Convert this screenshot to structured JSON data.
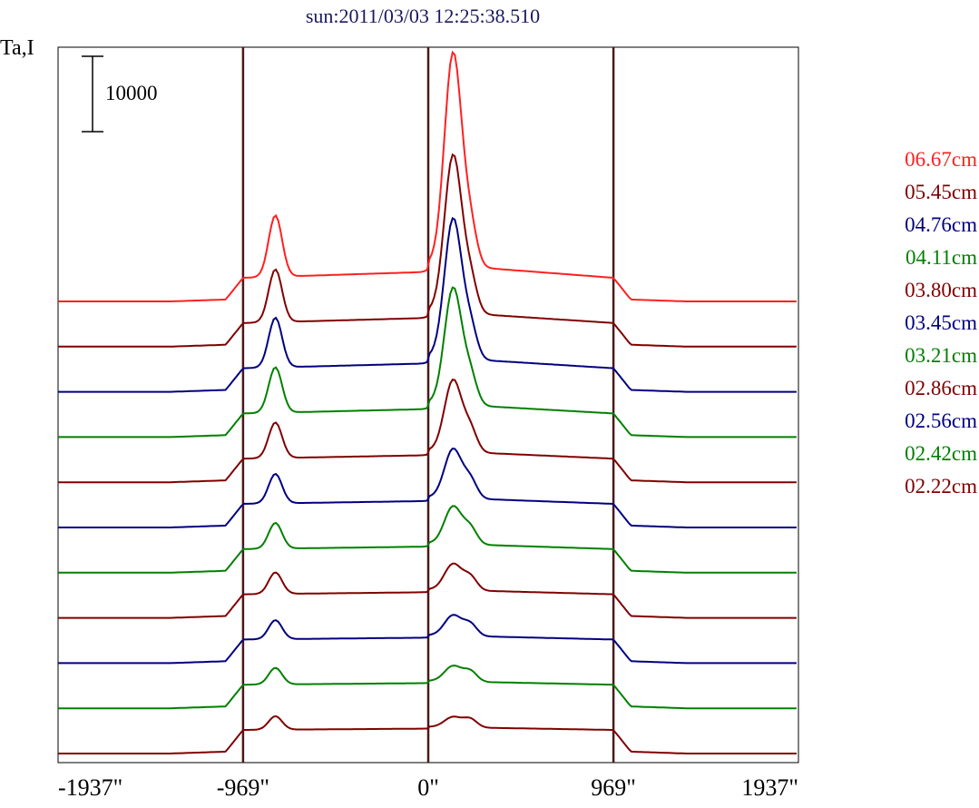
{
  "chart_data": {
    "type": "line",
    "title": "sun:2011/03/03 12:25:38.510",
    "ylabel": "Ta,I",
    "scale_bar_label": "10000",
    "scale_bar_value": 10000,
    "xlim": [
      -1937,
      1937
    ],
    "x_ticks": [
      {
        "value": -1937,
        "label": "-1937\""
      },
      {
        "value": -969,
        "label": "-969\""
      },
      {
        "value": 0,
        "label": "0\""
      },
      {
        "value": 969,
        "label": "969\""
      },
      {
        "value": 1937,
        "label": "1937\""
      }
    ],
    "vlines": [
      -969,
      0,
      969
    ],
    "legend_position": "right",
    "series": [
      {
        "name": "06.67cm",
        "color": "#ff2020",
        "amplitude": 1.0
      },
      {
        "name": "05.45cm",
        "color": "#800000",
        "amplitude": 0.86
      },
      {
        "name": "04.76cm",
        "color": "#000080",
        "amplitude": 0.81
      },
      {
        "name": "04.11cm",
        "color": "#008000",
        "amplitude": 0.74
      },
      {
        "name": "03.80cm",
        "color": "#800000",
        "amplitude": 0.58
      },
      {
        "name": "03.45cm",
        "color": "#000080",
        "amplitude": 0.48
      },
      {
        "name": "03.21cm",
        "color": "#008000",
        "amplitude": 0.42
      },
      {
        "name": "02.86cm",
        "color": "#800000",
        "amplitude": 0.35
      },
      {
        "name": "02.56cm",
        "color": "#000080",
        "amplitude": 0.31
      },
      {
        "name": "02.42cm",
        "color": "#008000",
        "amplitude": 0.27
      },
      {
        "name": "02.22cm",
        "color": "#800000",
        "amplitude": 0.22
      }
    ]
  }
}
